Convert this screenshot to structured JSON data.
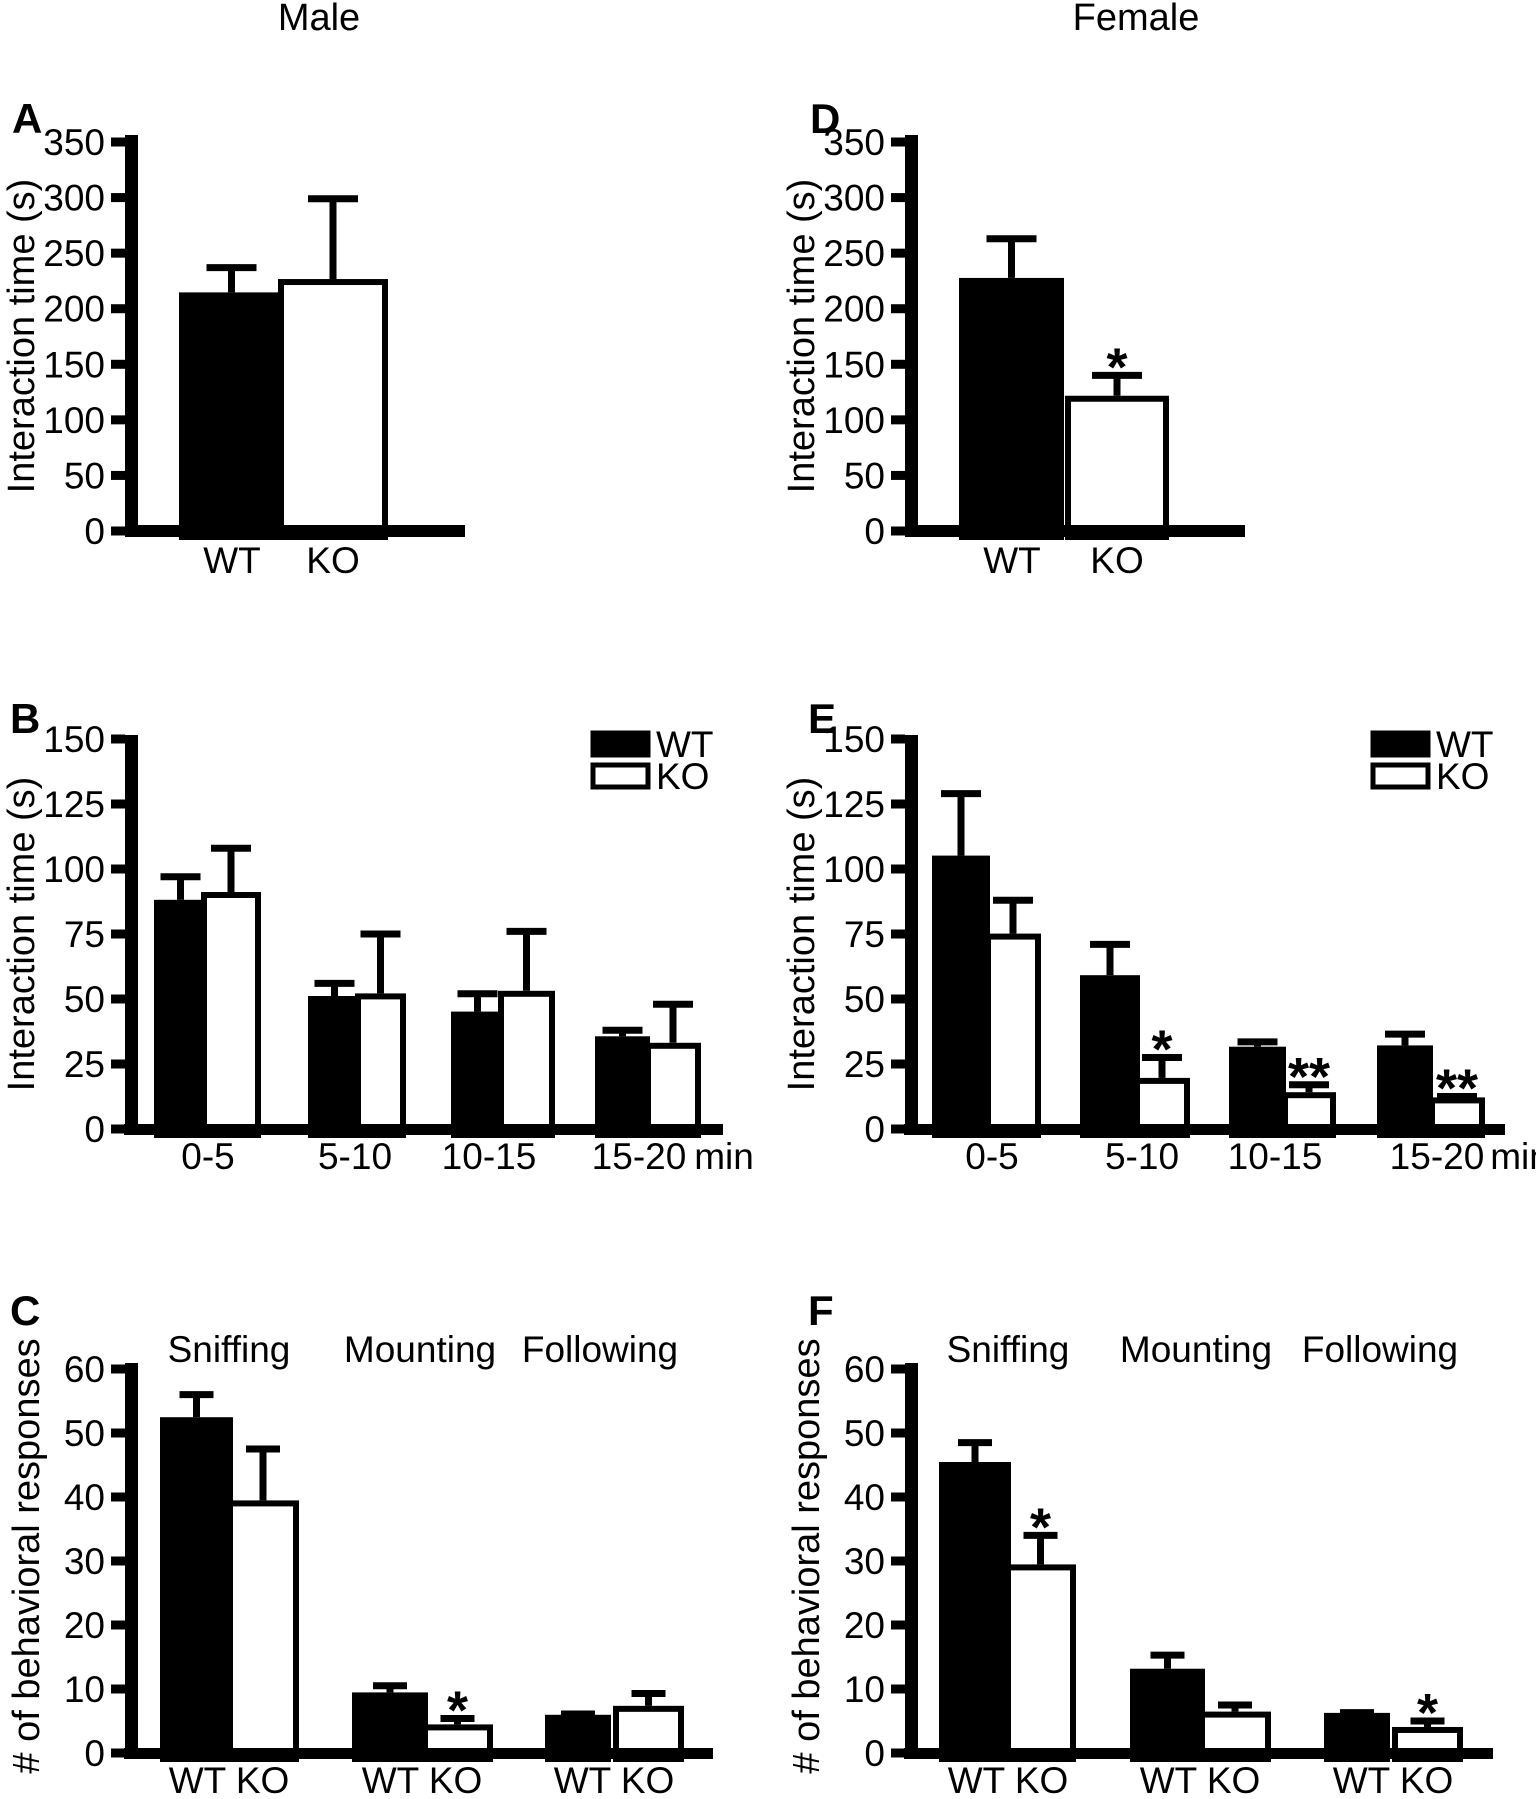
{
  "figure": {
    "column_titles": [
      {
        "id": "male",
        "text": "Male"
      },
      {
        "id": "female",
        "text": "Female"
      }
    ],
    "colors": {
      "foreground": "#000000",
      "background": "#ffffff",
      "wt_fill": "#000000",
      "ko_fill": "#ffffff"
    }
  },
  "chart_data": [
    {
      "id": "A",
      "panel_letter": "A",
      "column_title": "Male",
      "type": "bar",
      "ylabel": "Interaction time (s)",
      "ylim": [
        0,
        350
      ],
      "ytick_step": 50,
      "yticks": [
        0,
        50,
        100,
        150,
        200,
        250,
        300,
        350
      ],
      "bar_labels_below": true,
      "groups": [
        {
          "label": "",
          "bars": [
            {
              "series": "WT",
              "label": "WT",
              "value": 212,
              "err": 25
            },
            {
              "series": "KO",
              "label": "KO",
              "value": 224,
              "err": 75
            }
          ]
        }
      ]
    },
    {
      "id": "B",
      "panel_letter": "B",
      "column_title": "Male",
      "type": "bar",
      "ylabel": "Interaction time (s)",
      "ylim": [
        0,
        150
      ],
      "ytick_step": 25,
      "yticks": [
        0,
        25,
        50,
        75,
        100,
        125,
        150
      ],
      "x_unit_label": "min",
      "legend": {
        "position": "top-right",
        "entries": [
          "WT",
          "KO"
        ]
      },
      "group_label_position": "below",
      "groups": [
        {
          "label": "0-5",
          "bars": [
            {
              "series": "WT",
              "value": 87,
              "err": 10
            },
            {
              "series": "KO",
              "value": 90,
              "err": 18
            }
          ]
        },
        {
          "label": "5-10",
          "bars": [
            {
              "series": "WT",
              "value": 50,
              "err": 6
            },
            {
              "series": "KO",
              "value": 51,
              "err": 24
            }
          ]
        },
        {
          "label": "10-15",
          "bars": [
            {
              "series": "WT",
              "value": 44,
              "err": 8
            },
            {
              "series": "KO",
              "value": 52,
              "err": 24
            }
          ]
        },
        {
          "label": "15-20",
          "bars": [
            {
              "series": "WT",
              "value": 34.5,
              "err": 3.5
            },
            {
              "series": "KO",
              "value": 32,
              "err": 16
            }
          ]
        }
      ]
    },
    {
      "id": "C",
      "panel_letter": "C",
      "column_title": "Male",
      "type": "bar",
      "ylabel": "# of behavioral responses",
      "ylim": [
        0,
        60
      ],
      "ytick_step": 10,
      "yticks": [
        0,
        10,
        20,
        30,
        40,
        50,
        60
      ],
      "group_label_position": "above",
      "group_sublabel": "WT KO",
      "groups": [
        {
          "label": "Sniffing",
          "bars": [
            {
              "series": "WT",
              "value": 52,
              "err": 4
            },
            {
              "series": "KO",
              "value": 39,
              "err": 8.5
            }
          ]
        },
        {
          "label": "Mounting",
          "bars": [
            {
              "series": "WT",
              "value": 9,
              "err": 1.5
            },
            {
              "series": "KO",
              "value": 4,
              "err": 1.4,
              "sig": "*"
            }
          ]
        },
        {
          "label": "Following",
          "bars": [
            {
              "series": "WT",
              "value": 5.5,
              "err": 0.6
            },
            {
              "series": "KO",
              "value": 6.9,
              "err": 2.4
            }
          ]
        }
      ]
    },
    {
      "id": "D",
      "panel_letter": "D",
      "column_title": "Female",
      "type": "bar",
      "ylabel": "Interaction time (s)",
      "ylim": [
        0,
        350
      ],
      "ytick_step": 50,
      "yticks": [
        0,
        50,
        100,
        150,
        200,
        250,
        300,
        350
      ],
      "bar_labels_below": true,
      "groups": [
        {
          "label": "",
          "bars": [
            {
              "series": "WT",
              "label": "WT",
              "value": 225,
              "err": 38
            },
            {
              "series": "KO",
              "label": "KO",
              "value": 119,
              "err": 21,
              "sig": "*"
            }
          ]
        }
      ]
    },
    {
      "id": "E",
      "panel_letter": "E",
      "column_title": "Female",
      "type": "bar",
      "ylabel": "Interaction time (s)",
      "ylim": [
        0,
        150
      ],
      "ytick_step": 25,
      "yticks": [
        0,
        25,
        50,
        75,
        100,
        125,
        150
      ],
      "x_unit_label": "min",
      "legend": {
        "position": "top-right",
        "entries": [
          "WT",
          "KO"
        ]
      },
      "group_label_position": "below",
      "groups": [
        {
          "label": "0-5",
          "bars": [
            {
              "series": "WT",
              "value": 104,
              "err": 25
            },
            {
              "series": "KO",
              "value": 74,
              "err": 14
            }
          ]
        },
        {
          "label": "5-10",
          "bars": [
            {
              "series": "WT",
              "value": 58,
              "err": 13
            },
            {
              "series": "KO",
              "value": 18.5,
              "err": 9,
              "sig": "*"
            }
          ]
        },
        {
          "label": "10-15",
          "bars": [
            {
              "series": "WT",
              "value": 30.5,
              "err": 3
            },
            {
              "series": "KO",
              "value": 13,
              "err": 4,
              "sig": "**"
            }
          ]
        },
        {
          "label": "15-20",
          "bars": [
            {
              "series": "WT",
              "value": 31,
              "err": 5.5
            },
            {
              "series": "KO",
              "value": 11,
              "err": 1.5,
              "sig": "**"
            }
          ]
        }
      ]
    },
    {
      "id": "F",
      "panel_letter": "F",
      "column_title": "Female",
      "type": "bar",
      "ylabel": "# of behavioral responses",
      "ylim": [
        0,
        60
      ],
      "ytick_step": 10,
      "yticks": [
        0,
        10,
        20,
        30,
        40,
        50,
        60
      ],
      "group_label_position": "above",
      "group_sublabel": "WT KO",
      "groups": [
        {
          "label": "Sniffing",
          "bars": [
            {
              "series": "WT",
              "value": 45,
              "err": 3.5
            },
            {
              "series": "KO",
              "value": 29,
              "err": 5,
              "sig": "*"
            }
          ]
        },
        {
          "label": "Mounting",
          "bars": [
            {
              "series": "WT",
              "value": 12.7,
              "err": 2.6
            },
            {
              "series": "KO",
              "value": 6,
              "err": 1.5
            }
          ]
        },
        {
          "label": "Following",
          "bars": [
            {
              "series": "WT",
              "value": 5.8,
              "err": 0.5
            },
            {
              "series": "KO",
              "value": 3.6,
              "err": 1.4,
              "sig": "*"
            }
          ]
        }
      ]
    }
  ]
}
